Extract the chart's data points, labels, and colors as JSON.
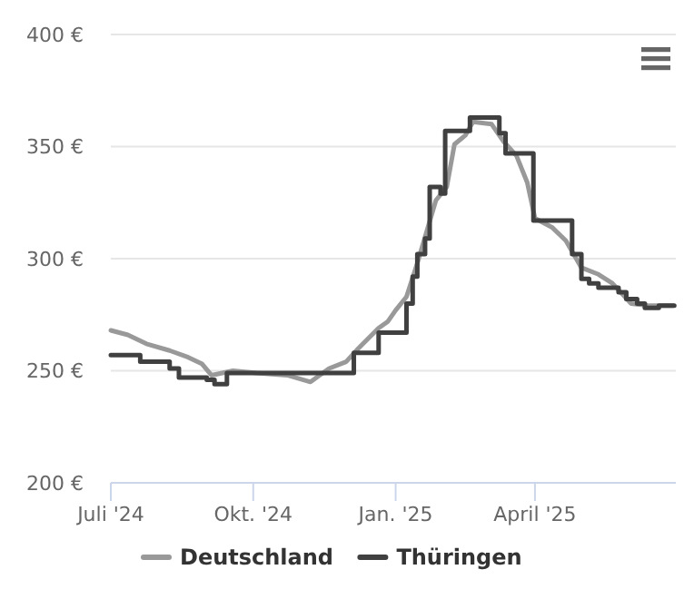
{
  "chart_data": {
    "type": "line",
    "xlim": [
      "2024-07-01",
      "2025-07-01"
    ],
    "xticks": [
      {
        "value": "2024-07-01",
        "label": "Juli '24"
      },
      {
        "value": "2024-10-01",
        "label": "Okt. '24"
      },
      {
        "value": "2025-01-01",
        "label": "Jan. '25"
      },
      {
        "value": "2025-04-01",
        "label": "April '25"
      }
    ],
    "ylim": [
      200,
      400
    ],
    "yticks": [
      {
        "value": 200,
        "label": "200 €"
      },
      {
        "value": 250,
        "label": "250 €"
      },
      {
        "value": 300,
        "label": "300 €"
      },
      {
        "value": 350,
        "label": "350 €"
      },
      {
        "value": 400,
        "label": "400 €"
      }
    ],
    "grid": "y",
    "legend": "bottom",
    "marker": "none",
    "line_style": "solid",
    "series": [
      {
        "name": "Deutschland",
        "color": "#999999",
        "type": "line",
        "x": [
          "2024-07-01",
          "2024-07-12",
          "2024-07-24",
          "2024-08-08",
          "2024-08-20",
          "2024-08-29",
          "2024-09-04",
          "2024-09-18",
          "2024-10-03",
          "2024-10-23",
          "2024-11-07",
          "2024-11-19",
          "2024-11-30",
          "2024-12-08",
          "2024-12-21",
          "2024-12-27",
          "2025-01-01",
          "2025-01-08",
          "2025-01-15",
          "2025-01-27",
          "2025-02-03",
          "2025-02-08",
          "2025-02-15",
          "2025-02-20",
          "2025-03-04",
          "2025-03-12",
          "2025-03-20",
          "2025-03-27",
          "2025-04-01",
          "2025-04-12",
          "2025-04-21",
          "2025-05-01",
          "2025-05-12",
          "2025-05-21",
          "2025-06-02",
          "2025-06-14",
          "2025-06-29"
        ],
        "values": [
          268,
          266,
          262,
          259,
          256,
          253,
          248,
          250,
          249,
          248,
          245,
          251,
          254,
          260,
          269,
          272,
          277,
          283,
          298,
          326,
          332,
          351,
          355,
          361,
          360,
          352,
          346,
          334,
          318,
          314,
          308,
          296,
          293,
          289,
          280,
          279,
          279
        ]
      },
      {
        "name": "Thüringen",
        "color": "#404040",
        "type": "step",
        "x": [
          "2024-07-01",
          "2024-07-20",
          "2024-08-08",
          "2024-08-14",
          "2024-09-01",
          "2024-09-06",
          "2024-09-14",
          "2024-11-19",
          "2024-12-05",
          "2024-12-21",
          "2025-01-08",
          "2025-01-12",
          "2025-01-15",
          "2025-01-20",
          "2025-01-23",
          "2025-01-30",
          "2025-02-02",
          "2025-02-18",
          "2025-03-09",
          "2025-03-13",
          "2025-03-31",
          "2025-04-25",
          "2025-05-01",
          "2025-05-06",
          "2025-05-12",
          "2025-05-25",
          "2025-05-30",
          "2025-06-06",
          "2025-06-11",
          "2025-06-20",
          "2025-06-30"
        ],
        "values": [
          257,
          254,
          251,
          247,
          246,
          244,
          249,
          249,
          258,
          267,
          280,
          292,
          302,
          309,
          332,
          329,
          357,
          363,
          356,
          347,
          317,
          302,
          291,
          289,
          287,
          285,
          282,
          280,
          278,
          279,
          279
        ]
      }
    ]
  }
}
